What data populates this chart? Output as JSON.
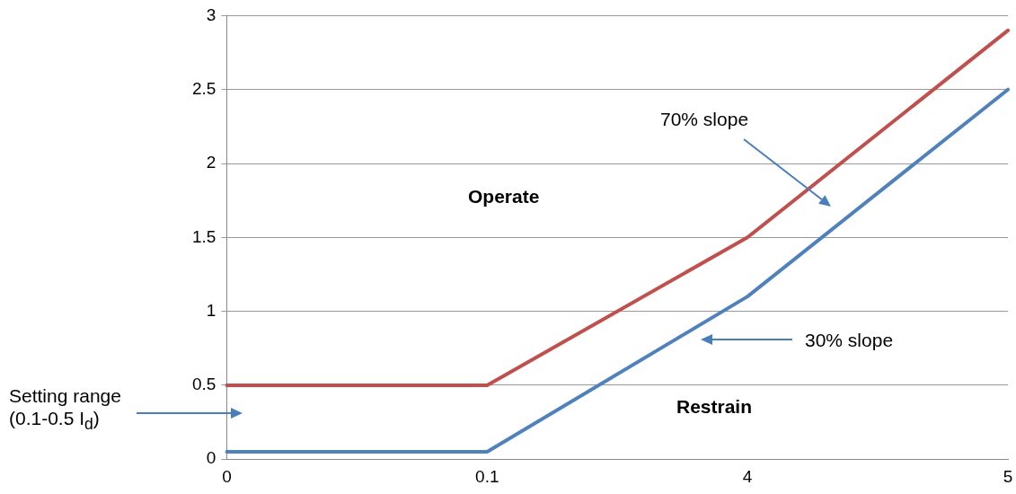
{
  "chart_data": {
    "type": "line",
    "categories": [
      "0",
      "0.1",
      "4",
      "5"
    ],
    "series": [
      {
        "color": "#c0504d",
        "values": [
          0.5,
          0.5,
          1.5,
          2.9
        ]
      },
      {
        "color": "#4f81bd",
        "values": [
          0.05,
          0.05,
          1.1,
          2.5
        ]
      }
    ],
    "ylim": [
      0,
      3
    ],
    "yticks": [
      0,
      0.5,
      1,
      1.5,
      2,
      2.5,
      3
    ],
    "grid": "y",
    "legend": false,
    "marker": "none",
    "line_style": "solid",
    "annotations": [
      "70% slope",
      "Operate",
      "30% slope",
      "Restrain",
      "Setting range (0.1-0.5 I$_{d}$)"
    ]
  }
}
